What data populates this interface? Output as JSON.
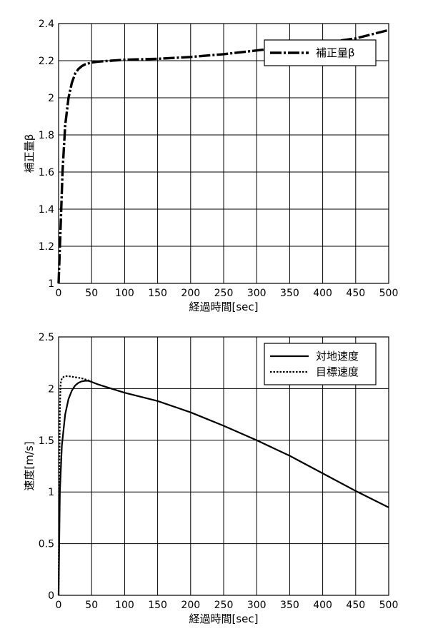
{
  "chart_data": [
    {
      "type": "line",
      "xlabel": "経過時間[sec]",
      "ylabel": "補正量β",
      "xlim": [
        0,
        500
      ],
      "ylim": [
        1,
        2.4
      ],
      "xticks": [
        "0",
        "50",
        "100",
        "150",
        "200",
        "250",
        "300",
        "350",
        "400",
        "450",
        "500"
      ],
      "yticks": [
        "1",
        "1.2",
        "1.4",
        "1.6",
        "1.8",
        "2",
        "2.2",
        "2.4"
      ],
      "grid": true,
      "legend_position": "top-right",
      "series": [
        {
          "name": "補正量β",
          "style": "dash-dot",
          "x": [
            0,
            3,
            6,
            10,
            15,
            20,
            25,
            30,
            35,
            40,
            50,
            60,
            80,
            100,
            150,
            200,
            250,
            300,
            350,
            400,
            450,
            500
          ],
          "y": [
            1.0,
            1.3,
            1.6,
            1.85,
            2.0,
            2.08,
            2.13,
            2.155,
            2.17,
            2.18,
            2.19,
            2.195,
            2.2,
            2.205,
            2.21,
            2.22,
            2.235,
            2.255,
            2.275,
            2.295,
            2.32,
            2.365
          ]
        }
      ]
    },
    {
      "type": "line",
      "xlabel": "経過時間[sec]",
      "ylabel": "速度[m/s]",
      "xlim": [
        0,
        500
      ],
      "ylim": [
        0,
        2.5
      ],
      "xticks": [
        "0",
        "50",
        "100",
        "150",
        "200",
        "250",
        "300",
        "350",
        "400",
        "450",
        "500"
      ],
      "yticks": [
        "0",
        "0.5",
        "1",
        "1.5",
        "2",
        "2.5"
      ],
      "grid": true,
      "legend_position": "top-right",
      "series": [
        {
          "name": "対地速度",
          "style": "solid",
          "x": [
            0,
            2,
            5,
            10,
            15,
            20,
            25,
            30,
            35,
            40,
            45,
            50,
            60,
            80,
            100,
            150,
            200,
            250,
            300,
            350,
            400,
            450,
            500
          ],
          "y": [
            0,
            1.0,
            1.45,
            1.75,
            1.9,
            1.98,
            2.03,
            2.055,
            2.07,
            2.075,
            2.075,
            2.065,
            2.04,
            2.0,
            1.96,
            1.88,
            1.77,
            1.64,
            1.5,
            1.35,
            1.18,
            1.01,
            0.85
          ]
        },
        {
          "name": "目標速度",
          "style": "dotted",
          "x": [
            0,
            1,
            2,
            3,
            5,
            8,
            10,
            15,
            20,
            25,
            30,
            35,
            40,
            45,
            50
          ],
          "y": [
            0,
            1.0,
            1.8,
            2.05,
            2.1,
            2.115,
            2.12,
            2.12,
            2.115,
            2.11,
            2.105,
            2.1,
            2.09,
            2.08,
            2.07
          ]
        }
      ]
    }
  ]
}
